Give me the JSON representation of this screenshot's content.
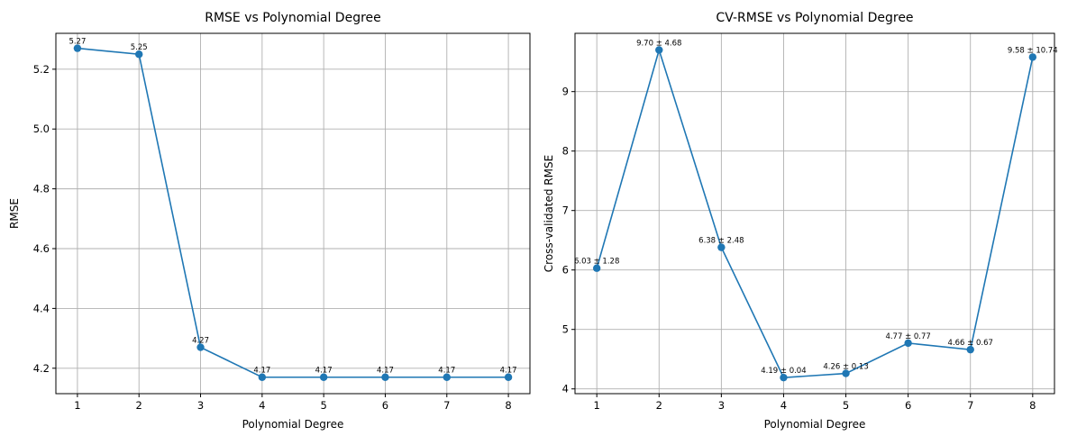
{
  "chart_data": [
    {
      "type": "line",
      "title": "RMSE vs Polynomial Degree",
      "xlabel": "Polynomial Degree",
      "ylabel": "RMSE",
      "x": [
        1,
        2,
        3,
        4,
        5,
        6,
        7,
        8
      ],
      "x_ticks": [
        "1",
        "2",
        "3",
        "4",
        "5",
        "6",
        "7",
        "8"
      ],
      "y_ticks": [
        "4.2",
        "4.4",
        "4.6",
        "4.8",
        "5.0",
        "5.2"
      ],
      "xlim": [
        0.65,
        8.35
      ],
      "ylim": [
        4.115,
        5.32
      ],
      "grid": true,
      "series": [
        {
          "values": [
            5.27,
            5.25,
            4.27,
            4.17,
            4.17,
            4.17,
            4.17,
            4.17
          ],
          "color": "#1f77b4",
          "marker": "circle",
          "data_labels": [
            "5.27",
            "5.25",
            "4.27",
            "4.17",
            "4.17",
            "4.17",
            "4.17",
            "4.17"
          ]
        }
      ]
    },
    {
      "type": "line",
      "title": "CV-RMSE vs Polynomial Degree",
      "xlabel": "Polynomial Degree",
      "ylabel": "Cross-validated RMSE",
      "x": [
        1,
        2,
        3,
        4,
        5,
        6,
        7,
        8
      ],
      "x_ticks": [
        "1",
        "2",
        "3",
        "4",
        "5",
        "6",
        "7",
        "8"
      ],
      "y_ticks": [
        "4",
        "5",
        "6",
        "7",
        "8",
        "9"
      ],
      "xlim": [
        0.65,
        8.35
      ],
      "ylim": [
        3.92,
        9.98
      ],
      "grid": true,
      "series": [
        {
          "values": [
            6.03,
            9.7,
            6.38,
            4.19,
            4.26,
            4.77,
            4.66,
            9.58
          ],
          "errors": [
            1.28,
            4.68,
            2.48,
            0.04,
            0.13,
            0.77,
            0.67,
            10.74
          ],
          "color": "#1f77b4",
          "marker": "circle",
          "data_labels": [
            "6.03 ± 1.28",
            "9.70 ± 4.68",
            "6.38 ± 2.48",
            "4.19 ± 0.04",
            "4.26 ± 0.13",
            "4.77 ± 0.77",
            "4.66 ± 0.67",
            "9.58 ± 10.74"
          ]
        }
      ]
    }
  ]
}
